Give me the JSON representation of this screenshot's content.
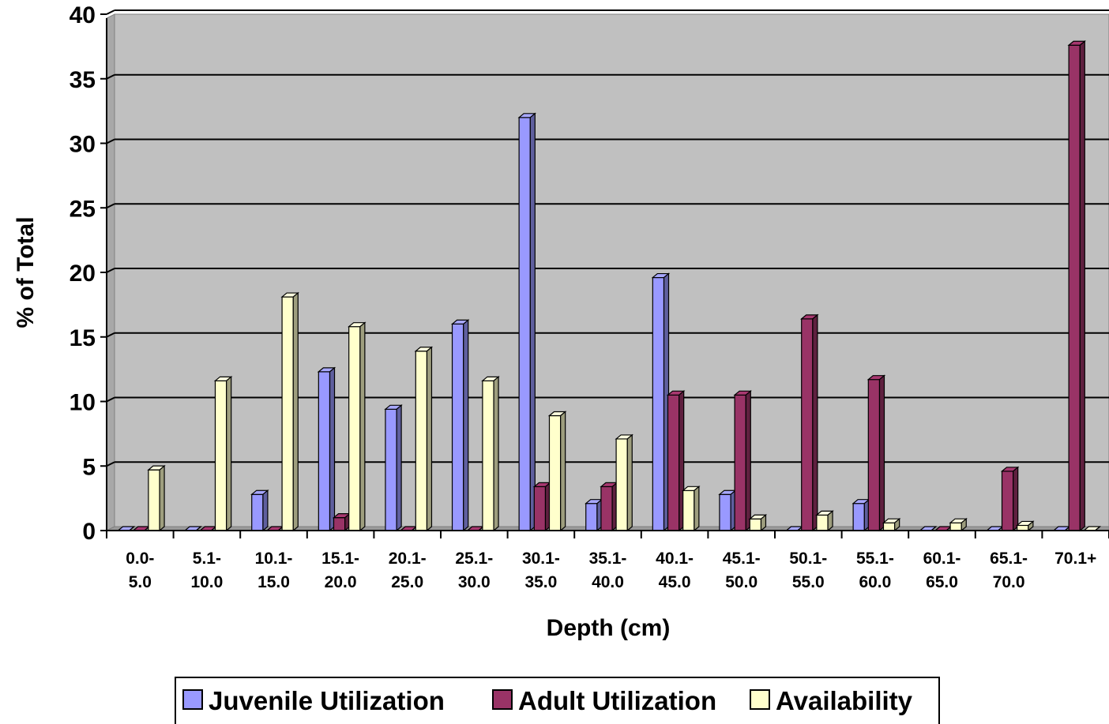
{
  "chart_data": {
    "type": "bar",
    "title": "",
    "xlabel": "Depth (cm)",
    "ylabel": "% of Total",
    "ylim": [
      0,
      40
    ],
    "yticks": [
      "0",
      "5",
      "10",
      "15",
      "20",
      "25",
      "30",
      "35",
      "40"
    ],
    "grid": true,
    "legend_position": "bottom",
    "categories": [
      [
        "0.0-",
        "5.0"
      ],
      [
        "5.1-",
        "10.0"
      ],
      [
        "10.1-",
        "15.0"
      ],
      [
        "15.1-",
        "20.0"
      ],
      [
        "20.1-",
        "25.0"
      ],
      [
        "25.1-",
        "30.0"
      ],
      [
        "30.1-",
        "35.0"
      ],
      [
        "35.1-",
        "40.0"
      ],
      [
        "40.1-",
        "45.0"
      ],
      [
        "45.1-",
        "50.0"
      ],
      [
        "50.1-",
        "55.0"
      ],
      [
        "55.1-",
        "60.0"
      ],
      [
        "60.1-",
        "65.0"
      ],
      [
        "65.1-",
        "70.0"
      ],
      [
        "70.1+"
      ]
    ],
    "series": [
      {
        "name": "Juvenile Utilization",
        "color": "#9999FF",
        "values": [
          0,
          0,
          2.8,
          12.3,
          9.4,
          16.0,
          32.0,
          2.1,
          19.6,
          2.8,
          0,
          2.1,
          0,
          0,
          0
        ]
      },
      {
        "name": "Adult Utilization",
        "color": "#993366",
        "values": [
          0,
          0,
          0,
          1.0,
          0,
          0,
          3.4,
          3.4,
          10.5,
          10.5,
          16.4,
          11.7,
          0,
          4.6,
          37.6
        ]
      },
      {
        "name": "Availability",
        "color": "#FFFFCC",
        "values": [
          4.7,
          11.6,
          18.1,
          15.8,
          13.9,
          11.6,
          8.9,
          7.1,
          3.1,
          0.9,
          1.2,
          0.6,
          0.6,
          0.4,
          0
        ]
      }
    ],
    "plot_background": "#C0C0C0"
  }
}
